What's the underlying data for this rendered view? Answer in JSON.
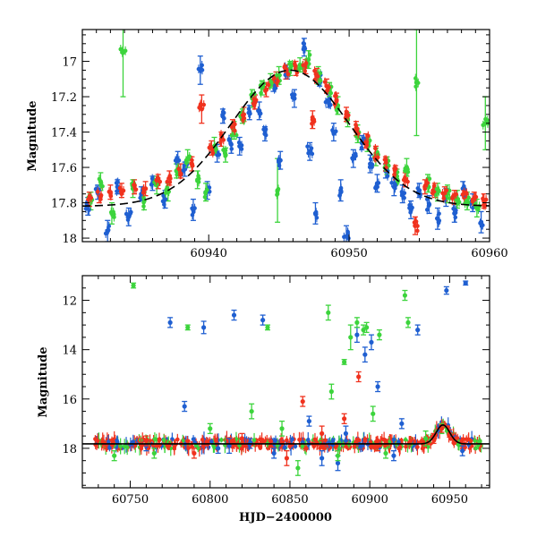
{
  "chart_data": [
    {
      "type": "scatter",
      "panel": "top",
      "title": "",
      "xlabel": "",
      "ylabel": "Magnitude",
      "xlim": [
        60931,
        60960
      ],
      "ylim": [
        18.02,
        16.82
      ],
      "y_inverted": true,
      "xticks": [
        60940,
        60950,
        60960
      ],
      "yticks": [
        17,
        17.2,
        17.4,
        17.6,
        17.8,
        18
      ],
      "xtick_labels": [
        "60940",
        "60950",
        "60960"
      ],
      "ytick_labels": [
        "17",
        "17.2",
        "17.4",
        "17.6",
        "17.8",
        "18"
      ],
      "series": [
        {
          "name": "blue",
          "color": "#1f5fd1",
          "points": [
            [
              60931.4,
              17.82,
              0.05
            ],
            [
              60932.1,
              17.74,
              0.04
            ],
            [
              60932.8,
              17.96,
              0.06
            ],
            [
              60933.5,
              17.71,
              0.04
            ],
            [
              60934.3,
              17.88,
              0.05
            ],
            [
              60935.2,
              17.75,
              0.04
            ],
            [
              60936.0,
              17.69,
              0.04
            ],
            [
              60936.9,
              17.78,
              0.05
            ],
            [
              60937.8,
              17.56,
              0.05
            ],
            [
              60938.3,
              17.61,
              0.04
            ],
            [
              60938.9,
              17.84,
              0.06
            ],
            [
              60939.4,
              17.05,
              0.08
            ],
            [
              60939.9,
              17.73,
              0.05
            ],
            [
              60940.6,
              17.52,
              0.05
            ],
            [
              60941.0,
              17.31,
              0.04
            ],
            [
              60941.6,
              17.47,
              0.05
            ],
            [
              60942.2,
              17.48,
              0.05
            ],
            [
              60942.9,
              17.29,
              0.04
            ],
            [
              60943.6,
              17.28,
              0.05
            ],
            [
              60944.0,
              17.41,
              0.04
            ],
            [
              60944.6,
              17.13,
              0.04
            ],
            [
              60945.1,
              17.56,
              0.05
            ],
            [
              60945.6,
              17.06,
              0.04
            ],
            [
              60946.1,
              17.21,
              0.05
            ],
            [
              60946.8,
              16.92,
              0.05
            ],
            [
              60947.2,
              17.51,
              0.05
            ],
            [
              60947.6,
              17.86,
              0.06
            ],
            [
              60947.9,
              17.1,
              0.04
            ],
            [
              60948.5,
              17.22,
              0.04
            ],
            [
              60948.9,
              17.4,
              0.05
            ],
            [
              60949.4,
              17.73,
              0.06
            ],
            [
              60949.8,
              17.99,
              0.06
            ],
            [
              60950.3,
              17.55,
              0.05
            ],
            [
              60950.9,
              17.46,
              0.04
            ],
            [
              60951.5,
              17.58,
              0.05
            ],
            [
              60952.0,
              17.69,
              0.05
            ],
            [
              60952.6,
              17.62,
              0.04
            ],
            [
              60953.2,
              17.71,
              0.05
            ],
            [
              60953.8,
              17.75,
              0.05
            ],
            [
              60954.4,
              17.84,
              0.05
            ],
            [
              60955.0,
              17.73,
              0.04
            ],
            [
              60955.7,
              17.81,
              0.05
            ],
            [
              60956.3,
              17.89,
              0.06
            ],
            [
              60956.9,
              17.77,
              0.05
            ],
            [
              60957.5,
              17.86,
              0.05
            ],
            [
              60958.1,
              17.72,
              0.04
            ],
            [
              60958.8,
              17.8,
              0.05
            ],
            [
              60959.4,
              17.91,
              0.06
            ]
          ]
        },
        {
          "name": "green",
          "color": "#3cd43c",
          "points": [
            [
              60931.6,
              17.79,
              0.05
            ],
            [
              60932.3,
              17.68,
              0.05
            ],
            [
              60933.1,
              17.86,
              0.06
            ],
            [
              60933.9,
              16.95,
              0.25
            ],
            [
              60934.6,
              17.72,
              0.05
            ],
            [
              60935.4,
              17.79,
              0.05
            ],
            [
              60936.3,
              17.7,
              0.05
            ],
            [
              60937.1,
              17.74,
              0.05
            ],
            [
              60937.7,
              17.62,
              0.04
            ],
            [
              60938.5,
              17.55,
              0.05
            ],
            [
              60939.2,
              17.67,
              0.05
            ],
            [
              60939.8,
              17.74,
              0.05
            ],
            [
              60940.4,
              17.48,
              0.05
            ],
            [
              60941.2,
              17.53,
              0.04
            ],
            [
              60941.8,
              17.39,
              0.05
            ],
            [
              60942.4,
              17.31,
              0.04
            ],
            [
              60943.1,
              17.21,
              0.05
            ],
            [
              60943.8,
              17.15,
              0.04
            ],
            [
              60944.4,
              17.11,
              0.04
            ],
            [
              60945.0,
              17.08,
              0.05
            ],
            [
              60945.8,
              17.04,
              0.04
            ],
            [
              60946.5,
              17.02,
              0.04
            ],
            [
              60947.1,
              16.99,
              0.05
            ],
            [
              60947.8,
              17.08,
              0.05
            ],
            [
              60948.6,
              17.16,
              0.04
            ],
            [
              60949.2,
              17.25,
              0.05
            ],
            [
              60949.9,
              17.33,
              0.04
            ],
            [
              60950.6,
              17.41,
              0.05
            ],
            [
              60951.3,
              17.47,
              0.04
            ],
            [
              60951.9,
              17.54,
              0.05
            ],
            [
              60952.7,
              17.59,
              0.05
            ],
            [
              60953.4,
              17.65,
              0.04
            ],
            [
              60954.1,
              17.6,
              0.05
            ],
            [
              60954.8,
              17.12,
              0.3
            ],
            [
              60955.6,
              17.69,
              0.05
            ],
            [
              60956.3,
              17.74,
              0.05
            ],
            [
              60957.0,
              17.75,
              0.05
            ],
            [
              60957.7,
              17.78,
              0.05
            ],
            [
              60958.4,
              17.79,
              0.05
            ],
            [
              60959.1,
              17.83,
              0.05
            ],
            [
              60959.7,
              17.35,
              0.15
            ],
            [
              60944.9,
              17.73,
              0.18
            ]
          ]
        },
        {
          "name": "red",
          "color": "#f0321e",
          "points": [
            [
              60931.5,
              17.78,
              0.04
            ],
            [
              60932.2,
              17.76,
              0.04
            ],
            [
              60933.0,
              17.74,
              0.04
            ],
            [
              60933.8,
              17.73,
              0.04
            ],
            [
              60934.7,
              17.71,
              0.04
            ],
            [
              60935.5,
              17.72,
              0.04
            ],
            [
              60936.4,
              17.68,
              0.04
            ],
            [
              60937.2,
              17.66,
              0.04
            ],
            [
              60938.0,
              17.62,
              0.04
            ],
            [
              60938.8,
              17.58,
              0.04
            ],
            [
              60939.5,
              17.27,
              0.08
            ],
            [
              60940.2,
              17.49,
              0.04
            ],
            [
              60940.9,
              17.44,
              0.04
            ],
            [
              60941.7,
              17.37,
              0.04
            ],
            [
              60942.5,
              17.3,
              0.04
            ],
            [
              60943.3,
              17.23,
              0.04
            ],
            [
              60944.1,
              17.16,
              0.04
            ],
            [
              60944.8,
              17.1,
              0.04
            ],
            [
              60945.5,
              17.06,
              0.04
            ],
            [
              60946.2,
              17.04,
              0.04
            ],
            [
              60946.9,
              17.03,
              0.04
            ],
            [
              60947.4,
              17.33,
              0.05
            ],
            [
              60947.7,
              17.08,
              0.04
            ],
            [
              60948.4,
              17.14,
              0.04
            ],
            [
              60949.1,
              17.22,
              0.04
            ],
            [
              60949.8,
              17.3,
              0.04
            ],
            [
              60950.5,
              17.38,
              0.04
            ],
            [
              60951.2,
              17.45,
              0.04
            ],
            [
              60951.9,
              17.52,
              0.04
            ],
            [
              60952.6,
              17.58,
              0.04
            ],
            [
              60953.3,
              17.63,
              0.04
            ],
            [
              60954.0,
              17.67,
              0.04
            ],
            [
              60954.7,
              17.93,
              0.05
            ],
            [
              60955.4,
              17.71,
              0.04
            ],
            [
              60956.1,
              17.73,
              0.04
            ],
            [
              60956.8,
              17.75,
              0.04
            ],
            [
              60957.5,
              17.77,
              0.04
            ],
            [
              60958.2,
              17.77,
              0.04
            ],
            [
              60958.9,
              17.78,
              0.04
            ],
            [
              60959.6,
              17.79,
              0.04
            ]
          ]
        }
      ],
      "model_curve": {
        "name": "model",
        "color": "#000000",
        "style": "dashed",
        "baseline": 17.82,
        "peak_mag": 17.05,
        "peak_x": 60945.8,
        "width": 4.2
      }
    },
    {
      "type": "scatter",
      "panel": "bottom",
      "title": "",
      "xlabel": "HJD−2400000",
      "ylabel": "Magnitude",
      "xlim": [
        60720,
        60975
      ],
      "ylim": [
        19.6,
        11.0
      ],
      "y_inverted": true,
      "xticks": [
        60750,
        60800,
        60850,
        60900,
        60950
      ],
      "yticks": [
        12,
        14,
        16,
        18
      ],
      "xtick_labels": [
        "60750",
        "60800",
        "60850",
        "60900",
        "60950"
      ],
      "ytick_labels": [
        "12",
        "14",
        "16",
        "18"
      ],
      "baseline_band": {
        "x_start": 60728,
        "x_end": 60970,
        "mag": 17.82,
        "spread": 0.2
      },
      "series": [
        {
          "name": "blue",
          "color": "#1f5fd1",
          "points": [
            [
              60775,
              12.9,
              0.2
            ],
            [
              60796,
              13.1,
              0.25
            ],
            [
              60815,
              12.6,
              0.2
            ],
            [
              60833,
              12.8,
              0.2
            ],
            [
              60784,
              16.3,
              0.2
            ],
            [
              60812,
              17.9,
              0.3
            ],
            [
              60862,
              16.9,
              0.2
            ],
            [
              60892,
              13.4,
              0.3
            ],
            [
              60897,
              14.2,
              0.3
            ],
            [
              60901,
              13.7,
              0.3
            ],
            [
              60905,
              15.5,
              0.2
            ],
            [
              60920,
              17.0,
              0.2
            ],
            [
              60930,
              13.2,
              0.2
            ],
            [
              60948,
              11.6,
              0.15
            ],
            [
              60960,
              11.3,
              0.08
            ],
            [
              60840,
              18.2,
              0.2
            ],
            [
              60870,
              18.4,
              0.3
            ],
            [
              60885,
              17.4,
              0.3
            ],
            [
              60915,
              18.3,
              0.2
            ],
            [
              60958,
              18.1,
              0.2
            ],
            [
              60760,
              17.9,
              0.2
            ],
            [
              60805,
              18.0,
              0.2
            ],
            [
              60825,
              17.8,
              0.2
            ],
            [
              60880,
              18.6,
              0.3
            ]
          ]
        },
        {
          "name": "green",
          "color": "#3cd43c",
          "points": [
            [
              60752,
              11.4,
              0.1
            ],
            [
              60786,
              13.1,
              0.1
            ],
            [
              60836,
              13.1,
              0.1
            ],
            [
              60874,
              12.5,
              0.3
            ],
            [
              60884,
              14.5,
              0.1
            ],
            [
              60888,
              13.5,
              0.5
            ],
            [
              60892,
              12.9,
              0.2
            ],
            [
              60896,
              13.2,
              0.2
            ],
            [
              60898,
              13.1,
              0.2
            ],
            [
              60906,
              13.4,
              0.2
            ],
            [
              60922,
              11.8,
              0.2
            ],
            [
              60924,
              12.9,
              0.2
            ],
            [
              60876,
              15.7,
              0.3
            ],
            [
              60902,
              16.6,
              0.3
            ],
            [
              60826,
              16.5,
              0.3
            ],
            [
              60845,
              17.2,
              0.3
            ],
            [
              60800,
              17.2,
              0.2
            ],
            [
              60740,
              18.3,
              0.2
            ],
            [
              60765,
              18.2,
              0.2
            ],
            [
              60855,
              18.8,
              0.3
            ],
            [
              60880,
              18.3,
              0.2
            ],
            [
              60910,
              18.2,
              0.2
            ],
            [
              60935,
              17.6,
              0.3
            ],
            [
              60945,
              17.2,
              0.2
            ]
          ]
        },
        {
          "name": "red",
          "color": "#f0321e",
          "points": [
            [
              60858,
              16.1,
              0.2
            ],
            [
              60884,
              16.8,
              0.2
            ],
            [
              60893,
              15.1,
              0.2
            ],
            [
              60870,
              17.4,
              0.3
            ],
            [
              60820,
              17.6,
              0.2
            ],
            [
              60790,
              18.2,
              0.2
            ],
            [
              60848,
              18.4,
              0.3
            ],
            [
              60905,
              17.9,
              0.2
            ],
            [
              60940,
              17.6,
              0.2
            ],
            [
              60945,
              17.2,
              0.15
            ],
            [
              60950,
              17.4,
              0.15
            ],
            [
              60760,
              17.7,
              0.2
            ]
          ]
        }
      ],
      "model_curve": {
        "name": "model",
        "color": "#000000",
        "style": "solid",
        "baseline": 17.82,
        "peak_mag": 17.05,
        "peak_x": 60945.8,
        "width": 4.2
      }
    }
  ]
}
